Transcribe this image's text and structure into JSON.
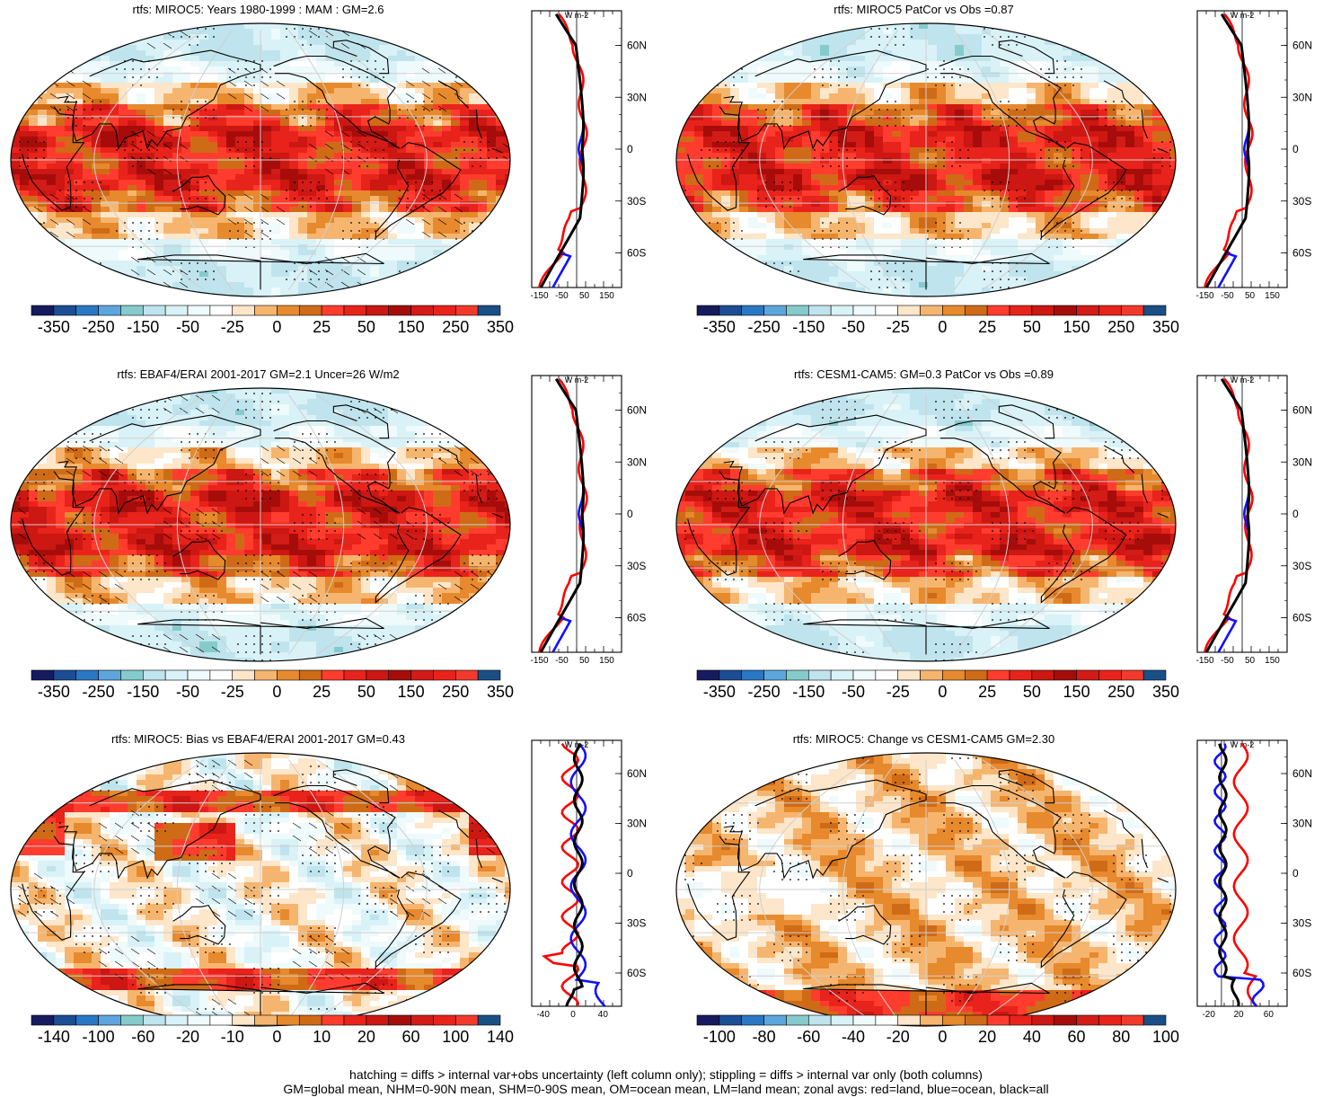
{
  "colors": {
    "ramp": [
      "#151b5e",
      "#1b4e94",
      "#2a77c4",
      "#5da6dd",
      "#85cbcc",
      "#bfe4ed",
      "#d9f2f7",
      "#eefafb",
      "#ffffff",
      "#fde6c9",
      "#f6b56e",
      "#e7892d",
      "#cf6b17",
      "#ff3c2e",
      "#e8231b",
      "#cc1712",
      "#a60d0a",
      "#d31b17",
      "#e8231b",
      "#f23a2c",
      "#1a4f86"
    ],
    "zonal_land": "#ff0000",
    "zonal_ocean": "#1010ff",
    "zonal_all": "#000000",
    "continent_edge": "#000000",
    "grid": "#cfcfcf"
  },
  "panels": [
    {
      "title": "rtfs: MIROC5: Years 1980-1999 : MAM : GM=2.6",
      "colorbar_labels": [
        "-350",
        "-250",
        "-150",
        "-50",
        "-25",
        "0",
        "25",
        "50",
        "150",
        "250",
        "350"
      ],
      "zonal_units": "W m-2",
      "zonal_lat_labels": [
        "60N",
        "30N",
        "0",
        "30S",
        "60S"
      ],
      "zonal_x_labels": [
        "-150",
        "-50",
        "50",
        "150"
      ],
      "map_scheme": "clim",
      "hatched": true
    },
    {
      "title": "rtfs: MIROC5 PatCor vs Obs =0.87",
      "colorbar_labels": [
        "-350",
        "-250",
        "-150",
        "-50",
        "-25",
        "0",
        "25",
        "50",
        "150",
        "250",
        "350"
      ],
      "zonal_units": "W m-2",
      "zonal_lat_labels": [
        "60N",
        "30N",
        "0",
        "30S",
        "60S"
      ],
      "zonal_x_labels": [
        "-150",
        "-50",
        "50",
        "150"
      ],
      "map_scheme": "clim",
      "hatched": false
    },
    {
      "title": "rtfs: EBAF4/ERAI 2001-2017 GM=2.1 Uncer=26 W/m2",
      "colorbar_labels": [
        "-350",
        "-250",
        "-150",
        "-50",
        "-25",
        "0",
        "25",
        "50",
        "150",
        "250",
        "350"
      ],
      "zonal_units": "W m-2",
      "zonal_lat_labels": [
        "60N",
        "30N",
        "0",
        "30S",
        "60S"
      ],
      "zonal_x_labels": [
        "-150",
        "-50",
        "50",
        "150"
      ],
      "map_scheme": "clim",
      "hatched": true
    },
    {
      "title": "rtfs: CESM1-CAM5: GM=0.3 PatCor vs Obs =0.89",
      "colorbar_labels": [
        "-350",
        "-250",
        "-150",
        "-50",
        "-25",
        "0",
        "25",
        "50",
        "150",
        "250",
        "350"
      ],
      "zonal_units": "W m-2",
      "zonal_lat_labels": [
        "60N",
        "30N",
        "0",
        "30S",
        "60S"
      ],
      "zonal_x_labels": [
        "-150",
        "-50",
        "50",
        "150"
      ],
      "map_scheme": "clim",
      "hatched": false
    },
    {
      "title": "rtfs: MIROC5: Bias vs EBAF4/ERAI 2001-2017 GM=0.43",
      "colorbar_labels": [
        "-140",
        "-100",
        "-60",
        "-20",
        "-10",
        "0",
        "10",
        "20",
        "60",
        "100",
        "140"
      ],
      "zonal_units": "W m-2",
      "zonal_lat_labels": [
        "60N",
        "30N",
        "0",
        "30S",
        "60S"
      ],
      "zonal_x_labels": [
        "-40",
        "0",
        "40"
      ],
      "map_scheme": "bias",
      "hatched": true
    },
    {
      "title": "rtfs: MIROC5: Change vs CESM1-CAM5 GM=2.30",
      "colorbar_labels": [
        "-100",
        "-80",
        "-60",
        "-40",
        "-20",
        "0",
        "20",
        "40",
        "60",
        "80",
        "100"
      ],
      "zonal_units": "W m-2",
      "zonal_lat_labels": [
        "60N",
        "30N",
        "0",
        "30S",
        "60S"
      ],
      "zonal_x_labels": [
        "-20",
        "20",
        "60"
      ],
      "map_scheme": "change",
      "hatched": false
    }
  ],
  "caption": {
    "line1": "hatching = diffs > internal var+obs uncertainty (left column only); stippling = diffs > internal var only (both columns)",
    "line2": "GM=global mean, NHM=0-90N mean, SHM=0-90S mean, OM=ocean mean, LM=land mean; zonal avgs: red=land, blue=ocean, black=all"
  }
}
